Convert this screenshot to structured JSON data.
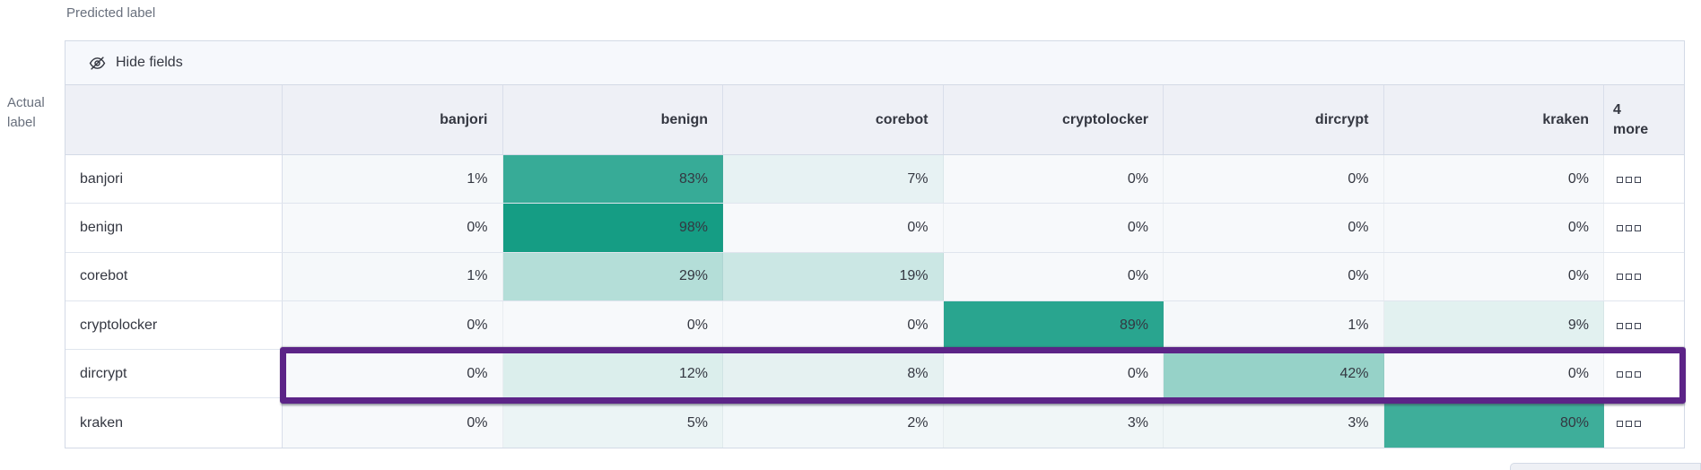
{
  "axes": {
    "predicted_label": "Predicted label",
    "actual_label_line1": "Actual",
    "actual_label_line2": "label"
  },
  "toolbar": {
    "hide_fields_label": "Hide fields"
  },
  "more_header": {
    "count": "4",
    "word": "more"
  },
  "value_suffix": "%",
  "chart_data": {
    "type": "heatmap",
    "x_axis_label": "Predicted label",
    "y_axis_label": "Actual label",
    "x": [
      "banjori",
      "benign",
      "corebot",
      "cryptolocker",
      "dircrypt",
      "kraken"
    ],
    "x_hidden_more_count": 4,
    "y": [
      "banjori",
      "benign",
      "corebot",
      "cryptolocker",
      "dircrypt",
      "kraken"
    ],
    "values_percent": [
      [
        1,
        83,
        7,
        0,
        0,
        0
      ],
      [
        0,
        98,
        0,
        0,
        0,
        0
      ],
      [
        1,
        29,
        19,
        0,
        0,
        0
      ],
      [
        0,
        0,
        0,
        89,
        1,
        9
      ],
      [
        0,
        12,
        8,
        0,
        42,
        0
      ],
      [
        0,
        5,
        2,
        3,
        3,
        80
      ]
    ],
    "highlighted_row": "dircrypt",
    "color_scale": {
      "low": "#f7f9fb",
      "high": "#109b82"
    }
  },
  "colors": {
    "highlight_box": "#5c2487",
    "header_bg": "#eef0f6",
    "toolbar_bg": "#f6f8fc",
    "table_border": "#d3dae6",
    "row_border": "#e0e5ee",
    "text_primary": "#343741",
    "text_secondary": "#69707d"
  }
}
